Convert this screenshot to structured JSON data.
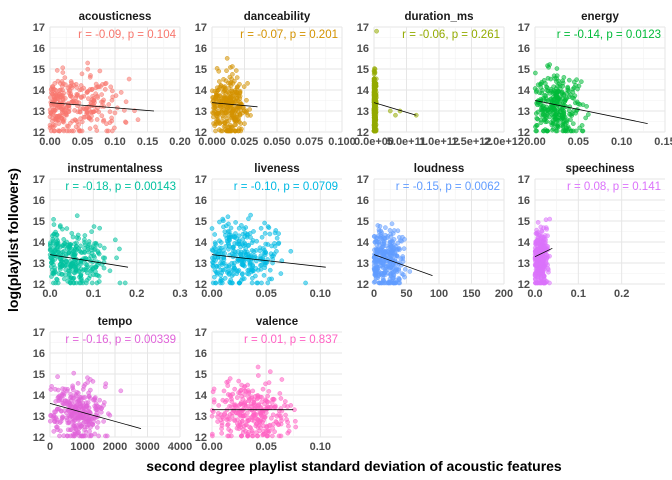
{
  "chart_data": {
    "type": "scatter",
    "xlabel": "second degree playlist standard deviation of acoustic features",
    "ylabel": "log(playlist followers)",
    "ylim": [
      12,
      17
    ],
    "yticks": [
      "12",
      "13",
      "14",
      "15",
      "16",
      "17"
    ],
    "panels": [
      {
        "feature": "acousticness",
        "color": "#F8766D",
        "stat_text": "r = -0.09, p = 0.104",
        "xlim": [
          0,
          0.2
        ],
        "xticks": [
          0,
          0.05,
          0.1,
          0.15,
          0.2
        ],
        "xtick_labels": [
          "0.00",
          "0.05",
          "0.10",
          "0.15",
          "0.20"
        ],
        "fit": {
          "x": [
            0,
            0.16
          ],
          "y": [
            13.4,
            13.0
          ]
        },
        "cloud": {
          "cx": 0.04,
          "sx": 0.035,
          "cy": 13.2,
          "sy": 0.75,
          "n": 300,
          "xmin": 0,
          "xmax": 0.16,
          "seed": 11
        }
      },
      {
        "feature": "danceability",
        "color": "#D39200",
        "stat_text": "r = -0.07, p = 0.201",
        "xlim": [
          0,
          0.1
        ],
        "xticks": [
          0,
          0.025,
          0.05,
          0.075,
          0.1
        ],
        "xtick_labels": [
          "0.000",
          "0.025",
          "0.050",
          "0.075",
          "0.100"
        ],
        "fit": {
          "x": [
            0,
            0.035
          ],
          "y": [
            13.4,
            13.2
          ]
        },
        "cloud": {
          "cx": 0.012,
          "sx": 0.007,
          "cy": 13.2,
          "sy": 0.75,
          "n": 300,
          "xmin": 0,
          "xmax": 0.035,
          "seed": 23
        }
      },
      {
        "feature": "duration_ms",
        "color": "#93AA00",
        "stat_text": "r = -0.06, p = 0.261",
        "xlim": [
          0,
          2000000000000.0
        ],
        "xticks": [
          0,
          500000000000.0,
          1000000000000.0,
          1500000000000.0,
          2000000000000.0
        ],
        "xtick_labels": [
          "0.0e+00",
          "5.0e+11",
          "1.0e+12",
          "1.5e+12",
          "2.0e+12"
        ],
        "fit": {
          "x": [
            0,
            650000000000.0
          ],
          "y": [
            13.4,
            12.8
          ]
        },
        "cloud": {
          "cx": 10000000000.0,
          "sx": 12000000000.0,
          "cy": 13.2,
          "sy": 0.75,
          "n": 300,
          "xmin": 0,
          "xmax": 50000000000.0,
          "seed": 37
        },
        "extra_points": [
          [
            250000000000.0,
            13.0
          ],
          [
            330000000000.0,
            12.8
          ],
          [
            400000000000.0,
            13.0
          ],
          [
            650000000000.0,
            12.8
          ],
          [
            40000000000.0,
            16.8
          ]
        ]
      },
      {
        "feature": "energy",
        "color": "#00BA38",
        "stat_text": "r = -0.14, p = 0.0123",
        "xlim": [
          0,
          0.15
        ],
        "xticks": [
          0,
          0.05,
          0.1,
          0.15
        ],
        "xtick_labels": [
          "0.00",
          "0.05",
          "0.10",
          "0.15"
        ],
        "fit": {
          "x": [
            0,
            0.13
          ],
          "y": [
            13.5,
            12.4
          ]
        },
        "cloud": {
          "cx": 0.025,
          "sx": 0.015,
          "cy": 13.2,
          "sy": 0.75,
          "n": 300,
          "xmin": 0,
          "xmax": 0.1,
          "seed": 41
        }
      },
      {
        "feature": "instrumentalness",
        "color": "#00C19F",
        "stat_text": "r = -0.18, p = 0.00143",
        "xlim": [
          0,
          0.3
        ],
        "xticks": [
          0,
          0.1,
          0.2,
          0.3
        ],
        "xtick_labels": [
          "0.0",
          "0.1",
          "0.2",
          "0.3"
        ],
        "fit": {
          "x": [
            0,
            0.18
          ],
          "y": [
            13.4,
            12.8
          ]
        },
        "cloud": {
          "cx": 0.05,
          "sx": 0.045,
          "cy": 13.2,
          "sy": 0.75,
          "n": 300,
          "xmin": 0,
          "xmax": 0.18,
          "seed": 53
        }
      },
      {
        "feature": "liveness",
        "color": "#00B9E3",
        "stat_text": "r = -0.10, p = 0.0709",
        "xlim": [
          0,
          0.12
        ],
        "xticks": [
          0,
          0.05,
          0.1
        ],
        "xtick_labels": [
          "0.00",
          "0.05",
          "0.10"
        ],
        "fit": {
          "x": [
            0,
            0.105
          ],
          "y": [
            13.4,
            12.8
          ]
        },
        "cloud": {
          "cx": 0.025,
          "sx": 0.018,
          "cy": 13.2,
          "sy": 0.75,
          "n": 300,
          "xmin": 0,
          "xmax": 0.1,
          "seed": 67
        }
      },
      {
        "feature": "loudness",
        "color": "#619CFF",
        "stat_text": "r = -0.15, p = 0.0062",
        "xlim": [
          0,
          200
        ],
        "xticks": [
          0,
          50,
          100,
          150,
          200
        ],
        "xtick_labels": [
          "0",
          "50",
          "100",
          "150",
          "200"
        ],
        "fit": {
          "x": [
            0,
            90
          ],
          "y": [
            13.4,
            12.4
          ]
        },
        "cloud": {
          "cx": 18,
          "sx": 14,
          "cy": 13.2,
          "sy": 0.75,
          "n": 300,
          "xmin": 0,
          "xmax": 90,
          "seed": 79
        }
      },
      {
        "feature": "speechiness",
        "color": "#DB72FB",
        "stat_text": "r = 0.08, p = 0.141",
        "xlim": [
          0,
          0.3
        ],
        "xticks": [
          0,
          0.1,
          0.2
        ],
        "xtick_labels": [
          "0.0",
          "0.1",
          "0.2"
        ],
        "fit": {
          "x": [
            0,
            0.04
          ],
          "y": [
            13.3,
            13.7
          ]
        },
        "cloud": {
          "cx": 0.012,
          "sx": 0.009,
          "cy": 13.2,
          "sy": 0.75,
          "n": 300,
          "xmin": 0,
          "xmax": 0.04,
          "seed": 83
        }
      },
      {
        "feature": "tempo",
        "color": "#E063D9",
        "stat_text": "r = -0.16, p = 0.00339",
        "xlim": [
          0,
          4000
        ],
        "xticks": [
          0,
          1000,
          2000,
          3000,
          4000
        ],
        "xtick_labels": [
          "0",
          "1000",
          "2000",
          "3000",
          "4000"
        ],
        "fit": {
          "x": [
            0,
            2800
          ],
          "y": [
            13.6,
            12.4
          ]
        },
        "cloud": {
          "cx": 800,
          "sx": 450,
          "cy": 13.2,
          "sy": 0.75,
          "n": 300,
          "xmin": 0,
          "xmax": 2500,
          "seed": 97
        }
      },
      {
        "feature": "valence",
        "color": "#FF61C3",
        "stat_text": "r = 0.01, p = 0.837",
        "xlim": [
          0,
          0.12
        ],
        "xticks": [
          0,
          0.05,
          0.1
        ],
        "xtick_labels": [
          "0.00",
          "0.05",
          "0.10"
        ],
        "fit": {
          "x": [
            0,
            0.075
          ],
          "y": [
            13.3,
            13.3
          ]
        },
        "cloud": {
          "cx": 0.035,
          "sx": 0.018,
          "cy": 13.2,
          "sy": 0.75,
          "n": 300,
          "xmin": 0,
          "xmax": 0.08,
          "seed": 101
        }
      }
    ]
  }
}
